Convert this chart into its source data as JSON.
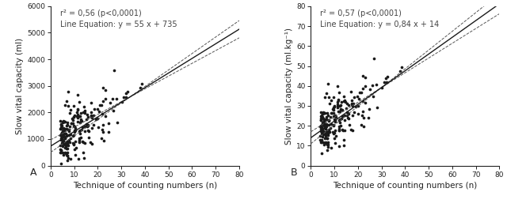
{
  "panel_A": {
    "title_text": "r² = 0,56 (p<0,0001)\nLine Equation: y = 55 x + 735",
    "xlabel": "Technique of counting numbers (n)",
    "ylabel": "Slow vital capacity (ml)",
    "xlim": [
      0,
      80
    ],
    "ylim": [
      0,
      6000
    ],
    "xticks": [
      0,
      10,
      20,
      30,
      40,
      50,
      60,
      70,
      80
    ],
    "yticks": [
      0,
      1000,
      2000,
      3000,
      4000,
      5000,
      6000
    ],
    "slope": 55,
    "intercept": 735,
    "ci_slope_upper": 62,
    "ci_intercept_upper": 500,
    "ci_slope_lower": 48,
    "ci_intercept_lower": 970,
    "label": "A",
    "noise_std": 550,
    "x_scale": 8,
    "x_min": 4,
    "x_max": 75
  },
  "panel_B": {
    "title_text": "r² = 0,57 (p<0,0001)\nLine Equation: y = 0,84 x + 14",
    "xlabel": "Technique of counting numbers (n)",
    "ylabel": "Slow vital capacity (ml.kg⁻¹)",
    "xlim": [
      0,
      80
    ],
    "ylim": [
      0,
      80
    ],
    "xticks": [
      0,
      10,
      20,
      30,
      40,
      50,
      60,
      70,
      80
    ],
    "yticks": [
      0,
      10,
      20,
      30,
      40,
      50,
      60,
      70,
      80
    ],
    "slope": 0.84,
    "intercept": 14,
    "ci_slope_upper": 0.94,
    "ci_intercept_upper": 11,
    "ci_slope_lower": 0.74,
    "ci_intercept_lower": 17,
    "label": "B",
    "noise_std": 7,
    "x_scale": 8,
    "x_min": 4,
    "x_max": 75
  },
  "scatter_color": "#1a1a1a",
  "line_color": "#1a1a1a",
  "ci_color": "#555555",
  "dot_size": 7,
  "seed": 42,
  "n_points": 221,
  "title_fontsize": 7,
  "label_fontsize": 7.5,
  "tick_fontsize": 6.5,
  "panel_label_fontsize": 9
}
